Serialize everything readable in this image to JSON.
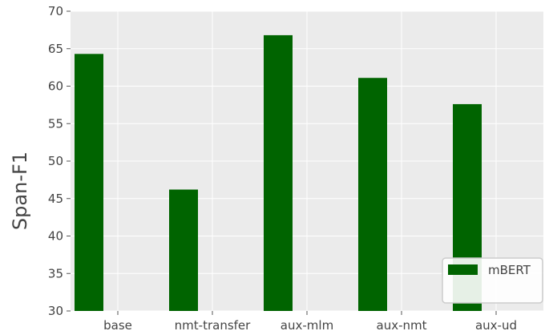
{
  "chart_data": {
    "type": "bar",
    "title": "",
    "xlabel": "",
    "ylabel": "Span-F1",
    "categories": [
      "base",
      "nmt-transfer",
      "aux-mlm",
      "aux-nmt",
      "aux-ud"
    ],
    "series": [
      {
        "name": "mBERT",
        "color": "#006400",
        "values": [
          64.3,
          46.2,
          66.8,
          61.1,
          57.6
        ]
      }
    ],
    "ylim": [
      30,
      70
    ],
    "yticks": [
      30,
      35,
      40,
      45,
      50,
      55,
      60,
      65,
      70
    ],
    "grid": true,
    "legend_position": "bottom-right",
    "background_color": "#ebebeb",
    "grid_color": "#ffffff"
  }
}
